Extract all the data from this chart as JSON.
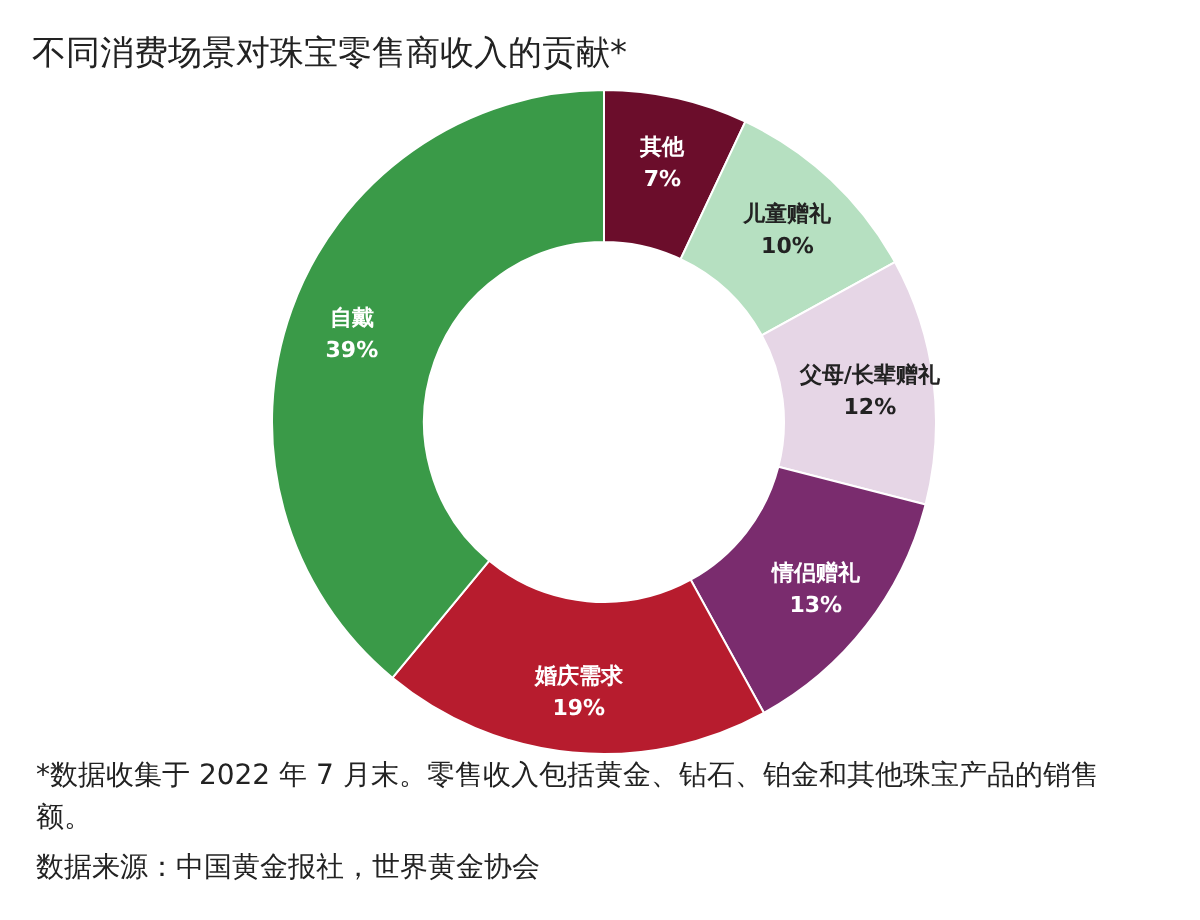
{
  "chart_data": {
    "type": "donut",
    "title": "不同消费场景对珠宝零售商收入的贡献*",
    "categories": [
      "其他",
      "儿童赠礼",
      "父母/长辈赠礼",
      "情侣赠礼",
      "婚庆需求",
      "自戴"
    ],
    "values": [
      7,
      10,
      12,
      13,
      19,
      39
    ],
    "colors": [
      "#6b0d2b",
      "#b6e0c1",
      "#e6d6e6",
      "#7a2c6e",
      "#b71c2e",
      "#3a9a48"
    ],
    "value_labels": [
      "7%",
      "10%",
      "12%",
      "13%",
      "19%",
      "39%"
    ],
    "annotations": [
      "*数据收集于 2022 年 7 月末。零售收入包括黄金、钻石、铂金和其他珠宝产品的销售额。",
      "数据来源：中国黄金报社，世界黄金协会"
    ]
  }
}
